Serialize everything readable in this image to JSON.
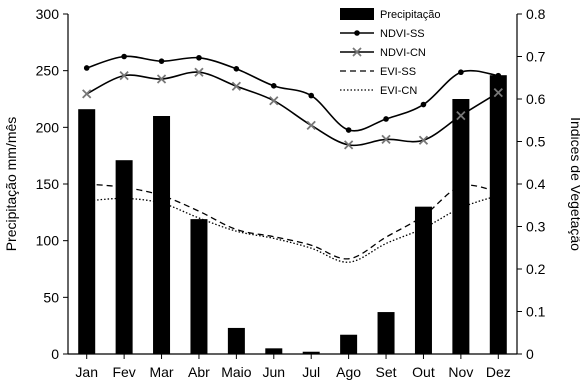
{
  "chart_data": {
    "type": "bar",
    "categories": [
      "Jan",
      "Fev",
      "Mar",
      "Abr",
      "Maio",
      "Jun",
      "Jul",
      "Ago",
      "Set",
      "Out",
      "Nov",
      "Dez"
    ],
    "ylabel_left": "Precipitação mm/mês",
    "ylabel_right": "Índices de Vegetação",
    "ylim_left": [
      0,
      300
    ],
    "ylim_right": [
      0,
      0.8
    ],
    "yticks_left": [
      "0",
      "50",
      "100",
      "150",
      "200",
      "250",
      "300"
    ],
    "yticks_right": [
      "0",
      "0.1",
      "0.2",
      "0.3",
      "0.4",
      "0.5",
      "0.6",
      "0.7",
      "0.8"
    ],
    "grid": false,
    "legend_position": "top-right",
    "bars": {
      "name": "Precipitação",
      "axis": "left",
      "color": "#000000",
      "values": [
        216,
        171,
        210,
        119,
        23,
        5,
        2,
        17,
        37,
        130,
        225,
        246
      ]
    },
    "series": [
      {
        "name": "NDVI-SS",
        "axis": "right",
        "style": "solid-dot",
        "values": [
          0.673,
          0.7,
          0.689,
          0.697,
          0.671,
          0.631,
          0.608,
          0.527,
          0.553,
          0.587,
          0.663,
          0.655
        ]
      },
      {
        "name": "NDVI-CN",
        "axis": "right",
        "style": "solid-x",
        "values": [
          0.612,
          0.655,
          0.647,
          0.663,
          0.63,
          0.596,
          0.538,
          0.492,
          0.505,
          0.503,
          0.561,
          0.615
        ]
      },
      {
        "name": "EVI-SS",
        "axis": "right",
        "style": "dashed",
        "values": [
          0.4,
          0.392,
          0.373,
          0.336,
          0.293,
          0.276,
          0.256,
          0.224,
          0.275,
          0.325,
          0.395,
          0.381
        ]
      },
      {
        "name": "EVI-CN",
        "axis": "right",
        "style": "dotted",
        "values": [
          0.36,
          0.366,
          0.355,
          0.32,
          0.289,
          0.272,
          0.249,
          0.216,
          0.26,
          0.296,
          0.344,
          0.373
        ]
      }
    ]
  }
}
